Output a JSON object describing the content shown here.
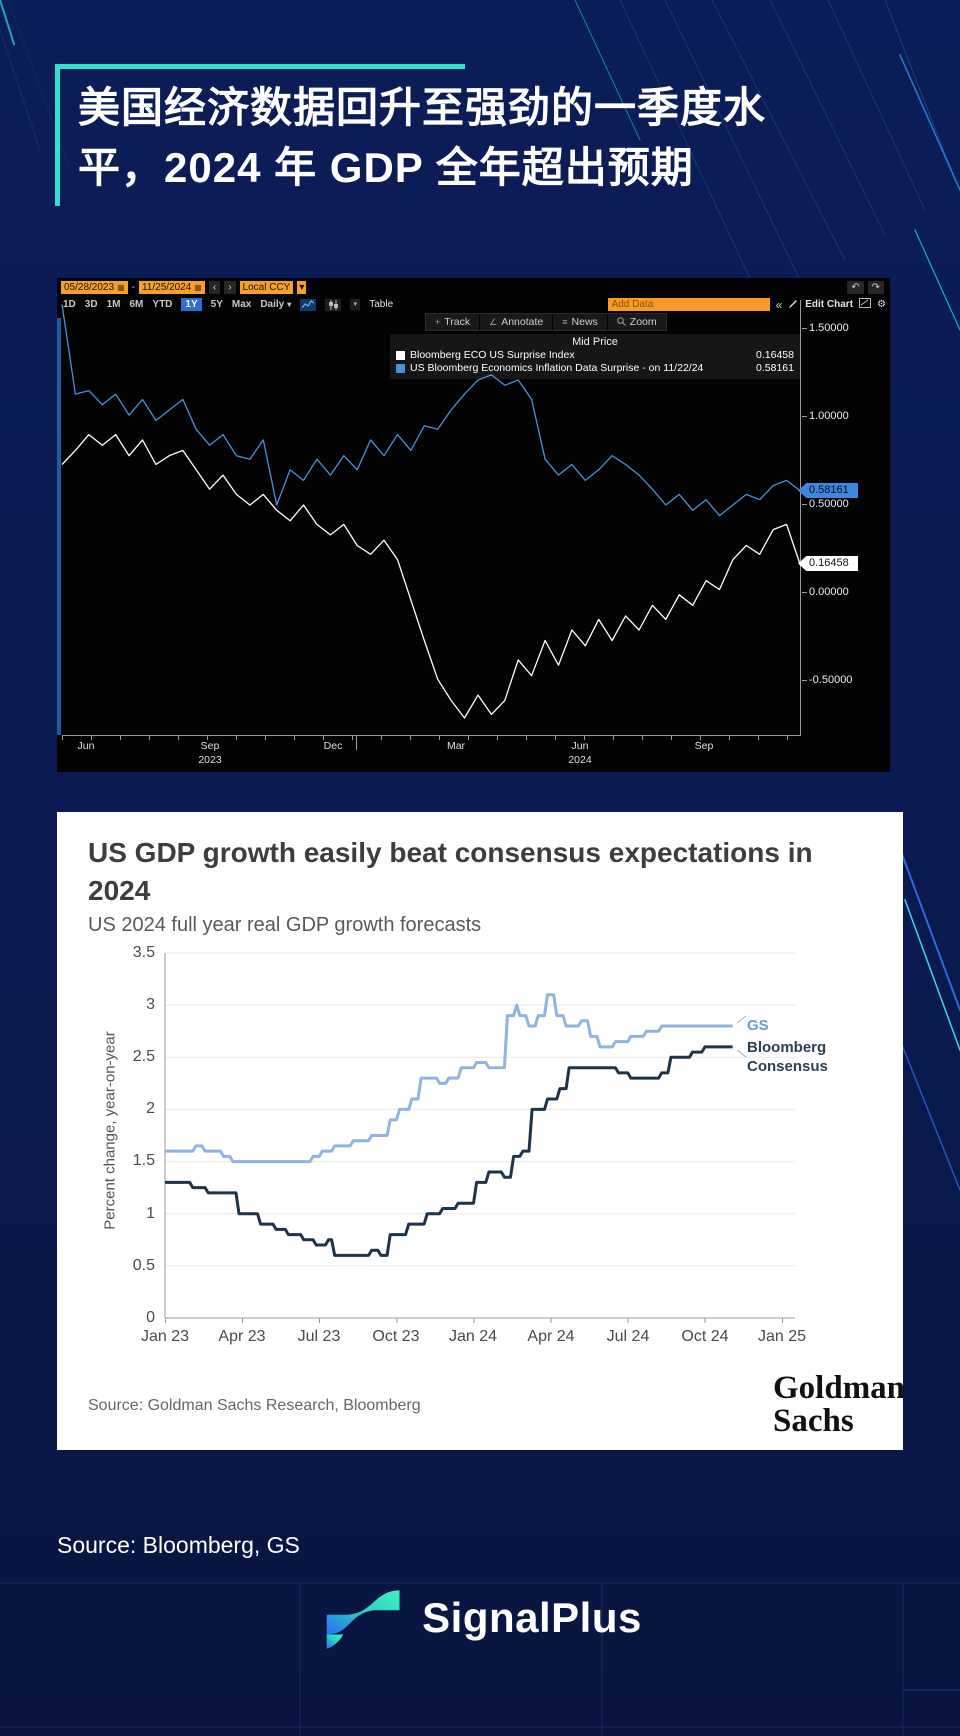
{
  "page": {
    "source_note": "Source: Bloomberg, GS",
    "brand": "SignalPlus",
    "accent_color": "#35e0d0",
    "background_color": "#0a1a4e"
  },
  "title": {
    "line1": "美国经济数据回升至强劲的一季度水",
    "line2": "平，2024 年 GDP 全年超出预期"
  },
  "bloomberg": {
    "date_from": "05/28/2023",
    "range_sep": "-",
    "date_to": "11/25/2024",
    "prev_icon": "‹",
    "next_icon": "›",
    "ccy": "Local CCY",
    "dropdown_icon": "▾",
    "calendar_icon": "▦",
    "periods": [
      "1D",
      "3D",
      "1M",
      "6M",
      "YTD",
      "1Y",
      "5Y",
      "Max"
    ],
    "active_period": "1Y",
    "freq": "Daily",
    "table_label": "Table",
    "add_data_placeholder": "Add Data",
    "collapse_icon": "«",
    "edit_chart_label": "Edit Chart",
    "undo_icon": "↶",
    "redo_icon": "↷",
    "gear_icon": "⚙",
    "actions": [
      {
        "icon": "+",
        "label": "Track"
      },
      {
        "icon": "∠",
        "label": "Annotate"
      },
      {
        "icon": "≡",
        "label": "News"
      },
      {
        "icon": "⌕",
        "label": "Zoom"
      }
    ],
    "legend_title": "Mid Price",
    "legend": [
      {
        "label": "Bloomberg ECO US Surprise Index",
        "value": "0.16458",
        "color": "#ffffff"
      },
      {
        "label": "US Bloomberg Economics Inflation Data Surprise -  on 11/22/24",
        "value": "0.58161",
        "color": "#4a8fe0"
      }
    ],
    "y_ticks": [
      "1.50000",
      "1.00000",
      "0.50000",
      "0.00000",
      "-0.50000"
    ],
    "badge_blue": "0.58161",
    "badge_white": "0.16458",
    "x_months": [
      "Jun",
      "Sep",
      "Dec",
      "Mar",
      "Jun",
      "Sep"
    ],
    "year_left": "2023",
    "year_right": "2024"
  },
  "gs": {
    "title": "US GDP growth easily beat consensus expectations in 2024",
    "subtitle": "US 2024 full year real GDP growth forecasts",
    "ylabel": "Percent change, year-on-year",
    "y_ticks": [
      "0",
      "0.5",
      "1",
      "1.5",
      "2",
      "2.5",
      "3",
      "3.5"
    ],
    "x_ticks": [
      "Jan 23",
      "Apr 23",
      "Jul 23",
      "Oct 23",
      "Jan 24",
      "Apr 24",
      "Jul 24",
      "Oct 24",
      "Jan 25"
    ],
    "legend_gs": "GS",
    "legend_bbg_line1": "Bloomberg",
    "legend_bbg_line2": "Consensus",
    "source": "Source: Goldman Sachs Research, Bloomberg",
    "logo_line1": "Goldman",
    "logo_line2": "Sachs"
  },
  "chart_data": [
    {
      "type": "line",
      "title": "Mid Price",
      "x_start": "05/28/2023",
      "x_end": "11/25/2024",
      "x_tick_labels": [
        "Jun 2023",
        "Sep 2023",
        "Dec 2023",
        "Mar 2024",
        "Jun 2024",
        "Sep 2024"
      ],
      "y_ticks": [
        1.5,
        1.0,
        0.5,
        0.0,
        -0.5
      ],
      "ylim": [
        -0.81,
        1.66
      ],
      "grid": false,
      "legend_position": "top",
      "series": [
        {
          "name": "Bloomberg ECO US Surprise Index",
          "color": "#ffffff",
          "last_value": 0.16458,
          "values": [
            0.73,
            0.81,
            0.9,
            0.84,
            0.9,
            0.78,
            0.87,
            0.73,
            0.78,
            0.81,
            0.7,
            0.59,
            0.67,
            0.56,
            0.5,
            0.56,
            0.47,
            0.41,
            0.5,
            0.39,
            0.33,
            0.39,
            0.27,
            0.22,
            0.3,
            0.19,
            -0.04,
            -0.27,
            -0.49,
            -0.61,
            -0.71,
            -0.58,
            -0.69,
            -0.61,
            -0.38,
            -0.47,
            -0.27,
            -0.41,
            -0.21,
            -0.3,
            -0.15,
            -0.27,
            -0.13,
            -0.21,
            -0.07,
            -0.15,
            -0.01,
            -0.07,
            0.07,
            0.02,
            0.19,
            0.27,
            0.22,
            0.36,
            0.39,
            0.16458
          ]
        },
        {
          "name": "US Bloomberg Economics Inflation Data Surprise - on 11/22/24",
          "color": "#4a8fe0",
          "last_value": 0.58161,
          "values": [
            1.64,
            1.13,
            1.15,
            1.07,
            1.13,
            1.01,
            1.1,
            0.98,
            1.04,
            1.1,
            0.93,
            0.84,
            0.9,
            0.78,
            0.76,
            0.87,
            0.5,
            0.7,
            0.64,
            0.76,
            0.67,
            0.78,
            0.7,
            0.87,
            0.78,
            0.9,
            0.81,
            0.95,
            0.93,
            1.04,
            1.13,
            1.21,
            1.24,
            1.18,
            1.21,
            1.1,
            0.76,
            0.67,
            0.73,
            0.64,
            0.7,
            0.78,
            0.73,
            0.67,
            0.59,
            0.5,
            0.56,
            0.47,
            0.53,
            0.44,
            0.5,
            0.56,
            0.53,
            0.61,
            0.64,
            0.58161
          ]
        }
      ]
    },
    {
      "type": "line",
      "title": "US GDP growth easily beat consensus expectations in 2024",
      "subtitle": "US 2024 full year real GDP growth forecasts",
      "ylabel": "Percent change, year-on-year",
      "ylim": [
        0,
        3.5
      ],
      "y_ticks": [
        0,
        0.5,
        1,
        1.5,
        2,
        2.5,
        3,
        3.5
      ],
      "x_tick_labels": [
        "Jan 23",
        "Apr 23",
        "Jul 23",
        "Oct 23",
        "Jan 24",
        "Apr 24",
        "Jul 24",
        "Oct 24",
        "Jan 25"
      ],
      "grid": true,
      "legend_position": "right",
      "series": [
        {
          "name": "GS",
          "color": "#8fb4e3",
          "points": [
            [
              0.0,
              1.6
            ],
            [
              0.045,
              1.6
            ],
            [
              0.05,
              1.65
            ],
            [
              0.06,
              1.65
            ],
            [
              0.065,
              1.6
            ],
            [
              0.09,
              1.6
            ],
            [
              0.095,
              1.55
            ],
            [
              0.105,
              1.55
            ],
            [
              0.11,
              1.5
            ],
            [
              0.235,
              1.5
            ],
            [
              0.24,
              1.55
            ],
            [
              0.25,
              1.55
            ],
            [
              0.255,
              1.6
            ],
            [
              0.27,
              1.6
            ],
            [
              0.275,
              1.65
            ],
            [
              0.3,
              1.65
            ],
            [
              0.305,
              1.7
            ],
            [
              0.33,
              1.7
            ],
            [
              0.335,
              1.75
            ],
            [
              0.36,
              1.75
            ],
            [
              0.365,
              1.9
            ],
            [
              0.375,
              1.9
            ],
            [
              0.38,
              2.0
            ],
            [
              0.395,
              2.0
            ],
            [
              0.4,
              2.1
            ],
            [
              0.41,
              2.1
            ],
            [
              0.415,
              2.3
            ],
            [
              0.44,
              2.3
            ],
            [
              0.445,
              2.25
            ],
            [
              0.455,
              2.25
            ],
            [
              0.46,
              2.3
            ],
            [
              0.475,
              2.3
            ],
            [
              0.48,
              2.4
            ],
            [
              0.5,
              2.4
            ],
            [
              0.505,
              2.45
            ],
            [
              0.52,
              2.45
            ],
            [
              0.525,
              2.4
            ],
            [
              0.55,
              2.4
            ],
            [
              0.555,
              2.9
            ],
            [
              0.565,
              2.9
            ],
            [
              0.57,
              3.0
            ],
            [
              0.575,
              2.9
            ],
            [
              0.585,
              2.9
            ],
            [
              0.59,
              2.8
            ],
            [
              0.6,
              2.8
            ],
            [
              0.605,
              2.9
            ],
            [
              0.615,
              2.9
            ],
            [
              0.62,
              3.1
            ],
            [
              0.63,
              3.1
            ],
            [
              0.635,
              2.9
            ],
            [
              0.645,
              2.9
            ],
            [
              0.65,
              2.8
            ],
            [
              0.67,
              2.8
            ],
            [
              0.675,
              2.85
            ],
            [
              0.685,
              2.85
            ],
            [
              0.69,
              2.7
            ],
            [
              0.7,
              2.7
            ],
            [
              0.705,
              2.6
            ],
            [
              0.725,
              2.6
            ],
            [
              0.73,
              2.65
            ],
            [
              0.75,
              2.65
            ],
            [
              0.755,
              2.7
            ],
            [
              0.775,
              2.7
            ],
            [
              0.78,
              2.75
            ],
            [
              0.8,
              2.75
            ],
            [
              0.805,
              2.8
            ],
            [
              0.92,
              2.8
            ]
          ]
        },
        {
          "name": "Bloomberg Consensus",
          "color": "#1c3349",
          "points": [
            [
              0.0,
              1.3
            ],
            [
              0.04,
              1.3
            ],
            [
              0.045,
              1.25
            ],
            [
              0.065,
              1.25
            ],
            [
              0.07,
              1.2
            ],
            [
              0.115,
              1.2
            ],
            [
              0.12,
              1.0
            ],
            [
              0.15,
              1.0
            ],
            [
              0.155,
              0.9
            ],
            [
              0.175,
              0.9
            ],
            [
              0.18,
              0.85
            ],
            [
              0.195,
              0.85
            ],
            [
              0.2,
              0.8
            ],
            [
              0.22,
              0.8
            ],
            [
              0.225,
              0.75
            ],
            [
              0.24,
              0.75
            ],
            [
              0.245,
              0.7
            ],
            [
              0.26,
              0.7
            ],
            [
              0.265,
              0.75
            ],
            [
              0.27,
              0.75
            ],
            [
              0.275,
              0.6
            ],
            [
              0.33,
              0.6
            ],
            [
              0.335,
              0.65
            ],
            [
              0.345,
              0.65
            ],
            [
              0.35,
              0.6
            ],
            [
              0.36,
              0.6
            ],
            [
              0.365,
              0.8
            ],
            [
              0.39,
              0.8
            ],
            [
              0.395,
              0.9
            ],
            [
              0.42,
              0.9
            ],
            [
              0.425,
              1.0
            ],
            [
              0.445,
              1.0
            ],
            [
              0.45,
              1.05
            ],
            [
              0.47,
              1.05
            ],
            [
              0.475,
              1.1
            ],
            [
              0.5,
              1.1
            ],
            [
              0.505,
              1.3
            ],
            [
              0.52,
              1.3
            ],
            [
              0.525,
              1.4
            ],
            [
              0.545,
              1.4
            ],
            [
              0.55,
              1.35
            ],
            [
              0.56,
              1.35
            ],
            [
              0.565,
              1.55
            ],
            [
              0.575,
              1.55
            ],
            [
              0.58,
              1.6
            ],
            [
              0.59,
              1.6
            ],
            [
              0.595,
              2.0
            ],
            [
              0.615,
              2.0
            ],
            [
              0.62,
              2.1
            ],
            [
              0.635,
              2.1
            ],
            [
              0.64,
              2.2
            ],
            [
              0.65,
              2.2
            ],
            [
              0.655,
              2.4
            ],
            [
              0.73,
              2.4
            ],
            [
              0.735,
              2.35
            ],
            [
              0.75,
              2.35
            ],
            [
              0.755,
              2.3
            ],
            [
              0.8,
              2.3
            ],
            [
              0.805,
              2.35
            ],
            [
              0.815,
              2.35
            ],
            [
              0.82,
              2.5
            ],
            [
              0.85,
              2.5
            ],
            [
              0.855,
              2.55
            ],
            [
              0.87,
              2.55
            ],
            [
              0.875,
              2.6
            ],
            [
              0.92,
              2.6
            ]
          ]
        }
      ]
    }
  ]
}
